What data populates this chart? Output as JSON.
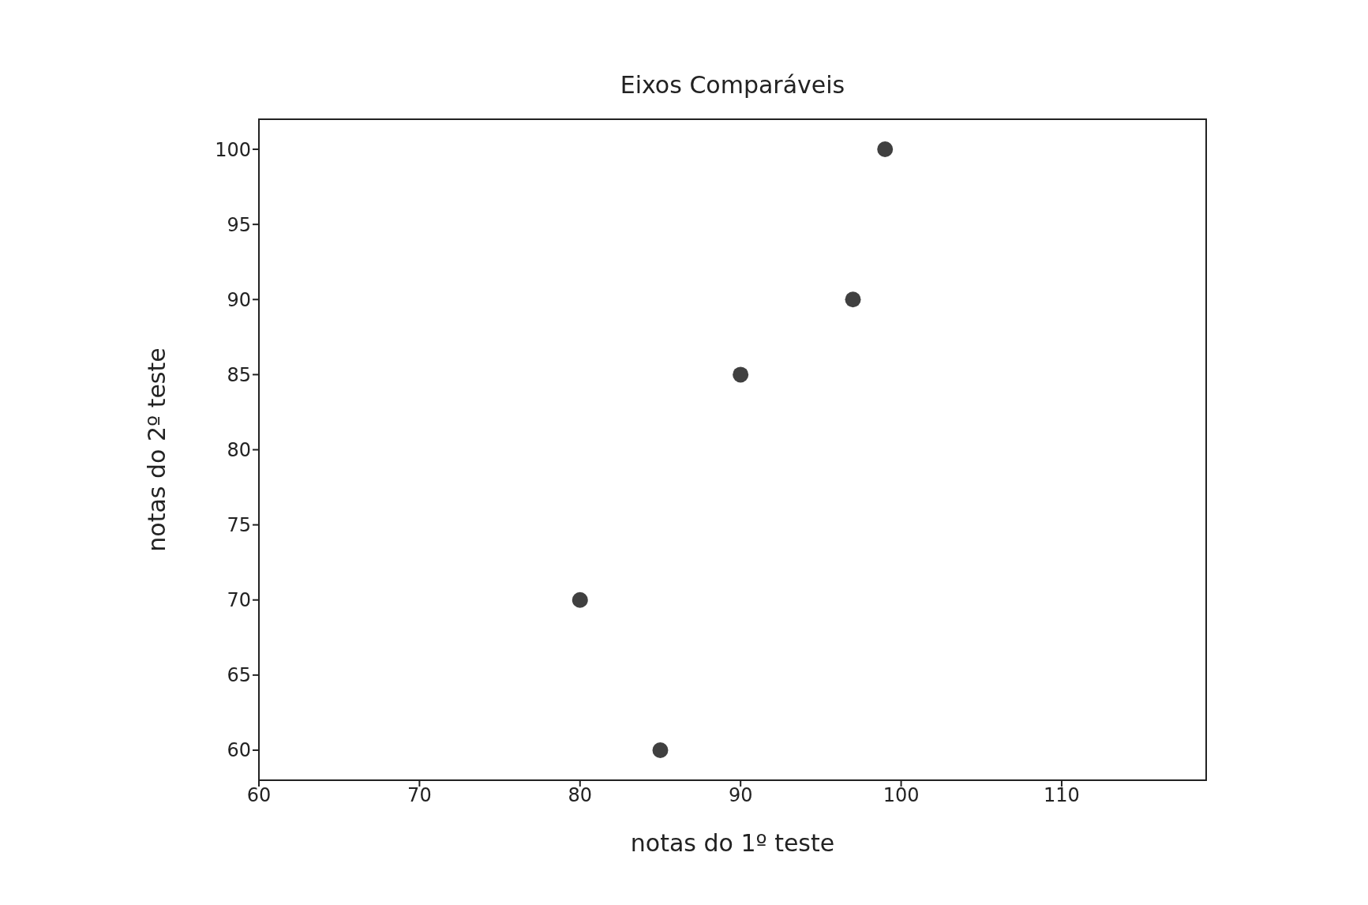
{
  "chart_data": {
    "type": "scatter",
    "title": "Eixos Comparáveis",
    "xlabel": "notas do 1º teste",
    "ylabel": "notas do 2º teste",
    "x": [
      80,
      85,
      90,
      97,
      99
    ],
    "values": [
      70,
      60,
      85,
      90,
      100
    ],
    "color": "#404040",
    "xlim": [
      60,
      119
    ],
    "xticks": [
      60,
      70,
      80,
      90,
      100,
      110
    ],
    "ylim": [
      58,
      102
    ],
    "yticks": [
      60,
      65,
      70,
      75,
      80,
      85,
      90,
      95,
      100
    ],
    "marker": "circle"
  }
}
